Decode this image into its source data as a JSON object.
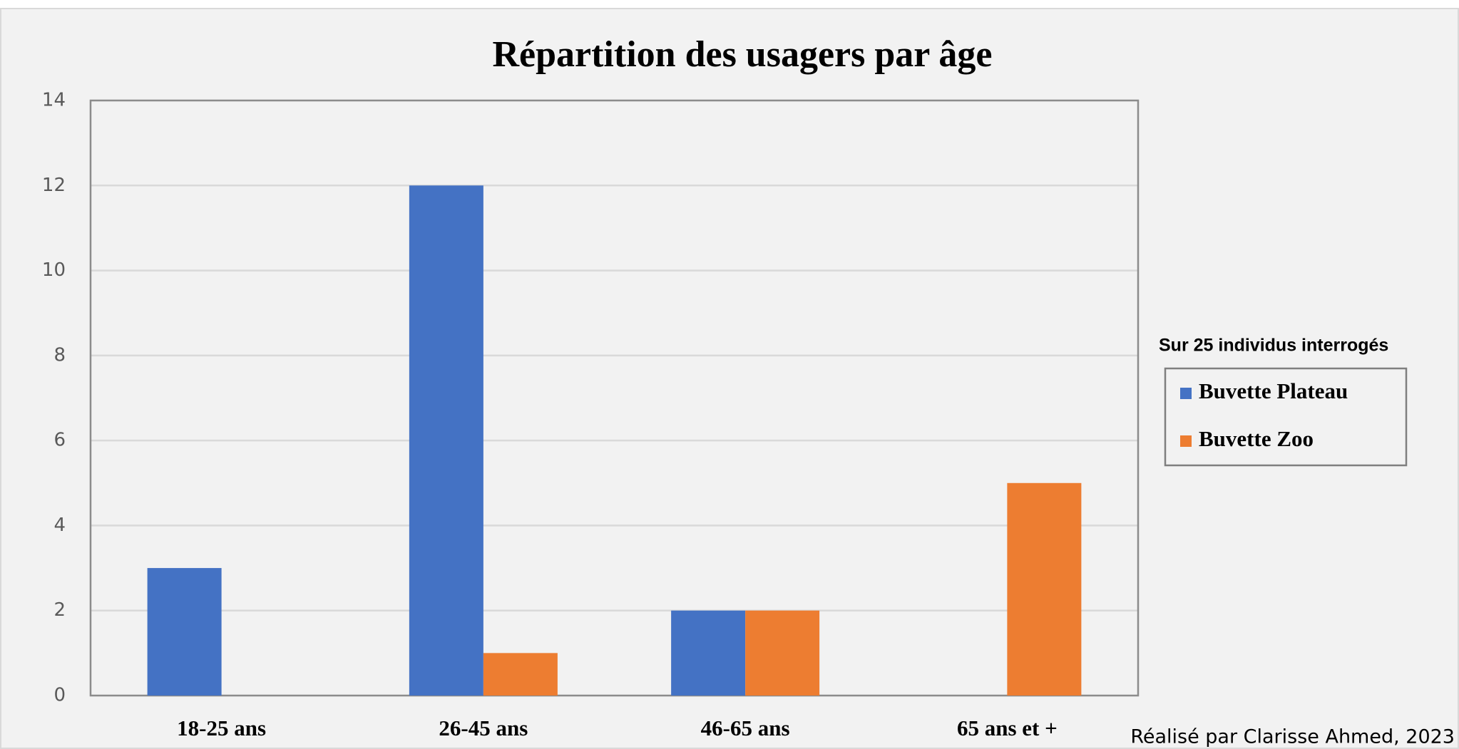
{
  "chart_data": {
    "type": "bar",
    "title": "Répartition des usagers par âge",
    "categories": [
      "18-25 ans",
      "26-45 ans",
      "46-65 ans",
      "65 ans et +"
    ],
    "series": [
      {
        "name": "Buvette Plateau",
        "color": "#4472c4",
        "values": [
          3,
          12,
          2,
          0
        ]
      },
      {
        "name": "Buvette Zoo",
        "color": "#ed7d31",
        "values": [
          0,
          1,
          2,
          5
        ]
      }
    ],
    "ylim": [
      0,
      14
    ],
    "yticks": [
      0,
      2,
      4,
      6,
      8,
      10,
      12,
      14
    ],
    "grid": true,
    "legend_title": "Sur 25 individus interrogés",
    "legend_position": "right",
    "annotation": "Réalisé par Clarisse Ahmed, 2023"
  }
}
